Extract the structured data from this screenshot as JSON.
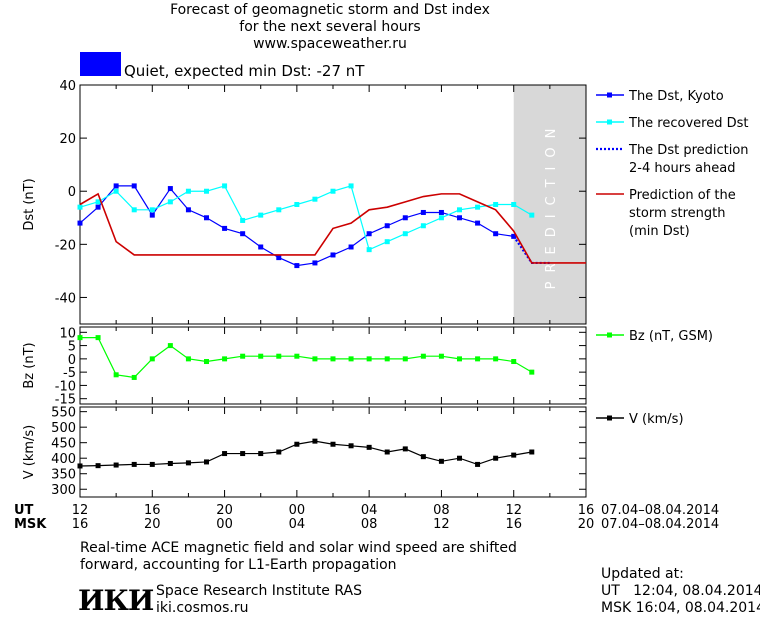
{
  "header": {
    "title_line1": "Forecast of geomagnetic storm and Dst index",
    "title_line2": "for the next several hours",
    "url": "www.spaceweather.ru",
    "status_text": "Quiet, expected min Dst: -27 nT",
    "status_color": "#0000ff"
  },
  "footer": {
    "note_line1": "Real-time ACE magnetic field and solar wind speed are shifted",
    "note_line2": "forward, accounting for L1-Earth propagation",
    "logo_text": "ИКИ",
    "org_name": "Space Research Institute RAS",
    "org_url": "iki.cosmos.ru",
    "updated_label": "Updated at:",
    "updated_ut": "UT   12:04, 08.04.2014",
    "updated_msk": "MSK 16:04, 08.04.2014"
  },
  "time_axis": {
    "ut_label": "UT",
    "msk_label": "MSK",
    "ut_ticks": [
      "12",
      "16",
      "20",
      "00",
      "04",
      "08",
      "12",
      "16"
    ],
    "msk_ticks": [
      "16",
      "20",
      "00",
      "04",
      "08",
      "12",
      "16",
      "20"
    ],
    "ut_range": "07.04–08.04.2014",
    "msk_range": "07.04–08.04.2014"
  },
  "chart_data": [
    {
      "type": "line",
      "ylabel": "Dst (nT)",
      "x_unit": "hours since 07.04.2014 12:00 UT",
      "xlim": [
        0,
        28
      ],
      "ylim": [
        -50,
        40
      ],
      "yticks": [
        40,
        20,
        0,
        -20,
        -40
      ],
      "prediction_band": {
        "from": 24,
        "to": 28,
        "label": "PREDICTION",
        "color": "#d8d8d8"
      },
      "series": [
        {
          "name": "The Dst, Kyoto",
          "color": "#0000ff",
          "marker": "square",
          "x": [
            0,
            1,
            2,
            3,
            4,
            5,
            6,
            7,
            8,
            9,
            10,
            11,
            12,
            13,
            14,
            15,
            16,
            17,
            18,
            19,
            20,
            21,
            22,
            23,
            24
          ],
          "y": [
            -12,
            -6,
            2,
            2,
            -9,
            1,
            -7,
            -10,
            -14,
            -16,
            -21,
            -25,
            -28,
            -27,
            -24,
            -21,
            -16,
            -13,
            -10,
            -8,
            -8,
            -10,
            -12,
            -16,
            -17
          ]
        },
        {
          "name": "The recovered Dst",
          "color": "#00ffff",
          "marker": "square",
          "x": [
            0,
            1,
            2,
            3,
            4,
            5,
            6,
            7,
            8,
            9,
            10,
            11,
            12,
            13,
            14,
            15,
            16,
            17,
            18,
            19,
            20,
            21,
            22,
            23,
            24,
            25
          ],
          "y": [
            -6,
            -4,
            0,
            -7,
            -7,
            -4,
            0,
            0,
            2,
            -11,
            -9,
            -7,
            -5,
            -3,
            0,
            2,
            -22,
            -19,
            -16,
            -13,
            -10,
            -7,
            -6,
            -5,
            -5,
            -9
          ]
        },
        {
          "name": "The Dst prediction\n2-4 hours ahead",
          "color": "#0000ff",
          "style": "dotted",
          "x": [
            24,
            25,
            26
          ],
          "y": [
            -17,
            -27,
            -27
          ]
        },
        {
          "name": "Prediction of the\nstorm strength\n(min Dst)",
          "color": "#cc0000",
          "x": [
            0,
            1,
            2,
            3,
            4,
            5,
            6,
            7,
            8,
            9,
            10,
            11,
            12,
            13,
            14,
            15,
            16,
            17,
            18,
            19,
            20,
            21,
            22,
            23,
            24,
            25,
            26,
            27,
            28
          ],
          "y": [
            -5,
            -1,
            -19,
            -24,
            -24,
            -24,
            -24,
            -24,
            -24,
            -24,
            -24,
            -24,
            -24,
            -24,
            -14,
            -12,
            -7,
            -6,
            -4,
            -2,
            -1,
            -1,
            -4,
            -7,
            -15,
            -27,
            -27,
            -27,
            -27
          ]
        }
      ]
    },
    {
      "type": "line",
      "ylabel": "Bz (nT)",
      "xlim": [
        0,
        28
      ],
      "ylim": [
        -17,
        12
      ],
      "yticks": [
        10,
        5,
        0,
        -5,
        -10,
        -15
      ],
      "series": [
        {
          "name": "Bz (nT, GSM)",
          "color": "#00ff00",
          "marker": "square",
          "x": [
            0,
            1,
            2,
            3,
            4,
            5,
            6,
            7,
            8,
            9,
            10,
            11,
            12,
            13,
            14,
            15,
            16,
            17,
            18,
            19,
            20,
            21,
            22,
            23,
            24,
            25
          ],
          "y": [
            8,
            8,
            -6,
            -7,
            0,
            5,
            0,
            -1,
            0,
            1,
            1,
            1,
            1,
            0,
            0,
            0,
            0,
            0,
            0,
            1,
            1,
            0,
            0,
            0,
            -1,
            -5
          ]
        }
      ]
    },
    {
      "type": "line",
      "ylabel": "V (km/s)",
      "xlim": [
        0,
        28
      ],
      "ylim": [
        275,
        565
      ],
      "yticks": [
        550,
        500,
        450,
        400,
        350,
        300
      ],
      "series": [
        {
          "name": "V (km/s)",
          "color": "#000000",
          "marker": "square",
          "x": [
            0,
            1,
            2,
            3,
            4,
            5,
            6,
            7,
            8,
            9,
            10,
            11,
            12,
            13,
            14,
            15,
            16,
            17,
            18,
            19,
            20,
            21,
            22,
            23,
            24,
            25
          ],
          "y": [
            375,
            376,
            378,
            380,
            380,
            383,
            385,
            388,
            415,
            415,
            415,
            420,
            445,
            455,
            445,
            440,
            435,
            420,
            430,
            405,
            390,
            400,
            380,
            400,
            410,
            420
          ]
        }
      ]
    }
  ]
}
